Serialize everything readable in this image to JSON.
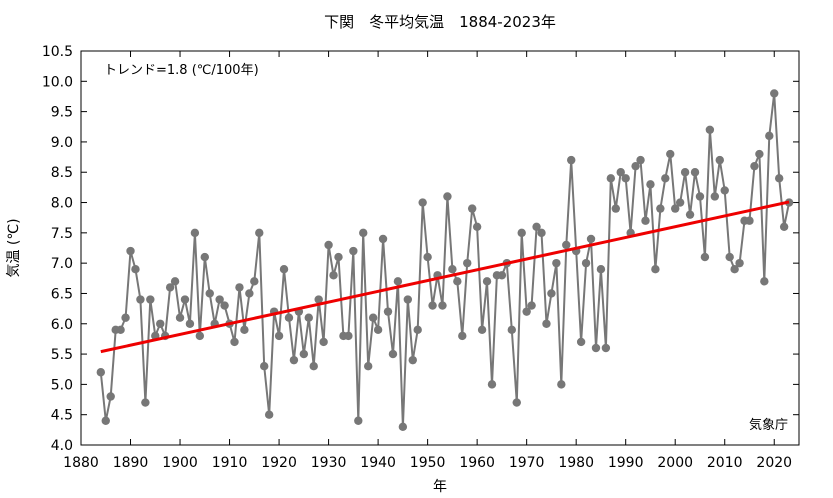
{
  "chart_data": {
    "type": "line",
    "title": "下関　冬平均気温　1884-2023年",
    "xlabel": "年",
    "ylabel": "気温 (℃)",
    "trend_label": "トレンド=1.8 (℃/100年)",
    "source_label": "気象庁",
    "xlim": [
      1880,
      2025
    ],
    "ylim": [
      4.0,
      10.5
    ],
    "xticks": [
      1880,
      1890,
      1900,
      1910,
      1920,
      1930,
      1940,
      1950,
      1960,
      1970,
      1980,
      1990,
      2000,
      2010,
      2020
    ],
    "yticks": [
      4.0,
      4.5,
      5.0,
      5.5,
      6.0,
      6.5,
      7.0,
      7.5,
      8.0,
      8.5,
      9.0,
      9.5,
      10.0,
      10.5
    ],
    "grid": false,
    "series_color": "#777777",
    "trend_color": "#ee0000",
    "trend": {
      "x": [
        1884,
        2023
      ],
      "y": [
        5.54,
        8.01
      ]
    },
    "x": [
      1884,
      1885,
      1886,
      1887,
      1888,
      1889,
      1890,
      1891,
      1892,
      1893,
      1894,
      1895,
      1896,
      1897,
      1898,
      1899,
      1900,
      1901,
      1902,
      1903,
      1904,
      1905,
      1906,
      1907,
      1908,
      1909,
      1910,
      1911,
      1912,
      1913,
      1914,
      1915,
      1916,
      1917,
      1918,
      1919,
      1920,
      1921,
      1922,
      1923,
      1924,
      1925,
      1926,
      1927,
      1928,
      1929,
      1930,
      1931,
      1932,
      1933,
      1934,
      1935,
      1936,
      1937,
      1938,
      1939,
      1940,
      1941,
      1942,
      1943,
      1944,
      1945,
      1946,
      1947,
      1948,
      1949,
      1950,
      1951,
      1952,
      1953,
      1954,
      1955,
      1956,
      1957,
      1958,
      1959,
      1960,
      1961,
      1962,
      1963,
      1964,
      1965,
      1966,
      1967,
      1968,
      1969,
      1970,
      1971,
      1972,
      1973,
      1974,
      1975,
      1976,
      1977,
      1978,
      1979,
      1980,
      1981,
      1982,
      1983,
      1984,
      1985,
      1986,
      1987,
      1988,
      1989,
      1990,
      1991,
      1992,
      1993,
      1994,
      1995,
      1996,
      1997,
      1998,
      1999,
      2000,
      2001,
      2002,
      2003,
      2004,
      2005,
      2006,
      2007,
      2008,
      2009,
      2010,
      2011,
      2012,
      2013,
      2014,
      2015,
      2016,
      2017,
      2018,
      2019,
      2020,
      2021,
      2022,
      2023
    ],
    "y": [
      5.2,
      4.4,
      4.8,
      5.9,
      5.9,
      6.1,
      7.2,
      6.9,
      6.4,
      4.7,
      6.4,
      5.8,
      6.0,
      5.8,
      6.6,
      6.7,
      6.1,
      6.4,
      6.0,
      7.5,
      5.8,
      7.1,
      6.5,
      6.0,
      6.4,
      6.3,
      6.0,
      5.7,
      6.6,
      5.9,
      6.5,
      6.7,
      7.5,
      5.3,
      4.5,
      6.2,
      5.8,
      6.9,
      6.1,
      5.4,
      6.2,
      5.5,
      6.1,
      5.3,
      6.4,
      5.7,
      7.3,
      6.8,
      7.1,
      5.8,
      5.8,
      7.2,
      4.4,
      7.5,
      5.3,
      6.1,
      5.9,
      7.4,
      6.2,
      5.5,
      6.7,
      4.3,
      6.4,
      5.4,
      5.9,
      8.0,
      7.1,
      6.3,
      6.8,
      6.3,
      8.1,
      6.9,
      6.7,
      5.8,
      7.0,
      7.9,
      7.6,
      5.9,
      6.7,
      5.0,
      6.8,
      6.8,
      7.0,
      5.9,
      4.7,
      7.5,
      6.2,
      6.3,
      7.6,
      7.5,
      6.0,
      6.5,
      7.0,
      5.0,
      7.3,
      8.7,
      7.2,
      5.7,
      7.0,
      7.4,
      5.6,
      6.9,
      5.6,
      8.4,
      7.9,
      8.5,
      8.4,
      7.5,
      8.6,
      8.7,
      7.7,
      8.3,
      6.9,
      7.9,
      8.4,
      8.8,
      7.9,
      8.0,
      8.5,
      7.8,
      8.5,
      8.1,
      7.1,
      9.2,
      8.1,
      8.7,
      8.2,
      7.1,
      6.9,
      7.0,
      7.7,
      7.7,
      8.6,
      8.8,
      6.7,
      9.1,
      9.8,
      8.4,
      7.6,
      8.0
    ]
  }
}
